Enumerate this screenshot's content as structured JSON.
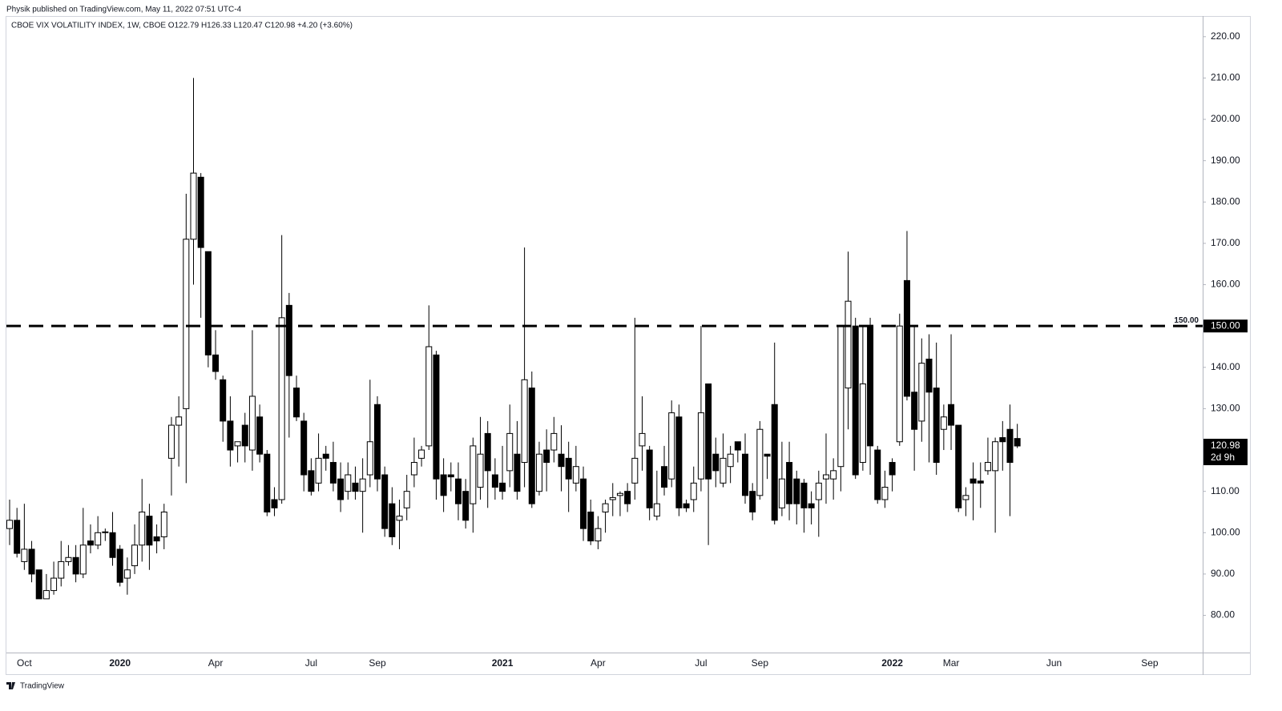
{
  "header": "Physik published on TradingView.com, May 11, 2022 07:51 UTC-4",
  "footer": "TradingView",
  "chart_data": {
    "type": "candlestick",
    "title": "CBOE VIX VOLATILITY INDEX, 1W, CBOE  O122.79  H126.33  L120.47  C120.98  +4.20 (+3.60%)",
    "categories": [
      null,
      null,
      "Oct",
      null,
      null,
      null,
      null,
      null,
      null,
      null,
      null,
      null,
      null,
      null,
      null,
      "2020",
      null,
      null,
      null,
      null,
      null,
      null,
      null,
      null,
      null,
      null,
      null,
      null,
      "Apr",
      null,
      null,
      null,
      null,
      null,
      null,
      null,
      null,
      null,
      null,
      null,
      null,
      "Jul",
      null,
      null,
      null,
      null,
      null,
      null,
      null,
      null,
      "Sep",
      null,
      null,
      null,
      null,
      null,
      null,
      null,
      null,
      null,
      null,
      null,
      null,
      null,
      null,
      null,
      null,
      "2021",
      null,
      null,
      null,
      null,
      null,
      null,
      null,
      null,
      null,
      null,
      null,
      null,
      "Apr",
      null,
      null,
      null,
      null,
      null,
      null,
      null,
      null,
      null,
      null,
      null,
      null,
      null,
      "Jul",
      null,
      null,
      null,
      null,
      null,
      null,
      null,
      "Sep",
      null,
      null,
      null,
      null,
      null,
      null,
      null,
      null,
      null,
      null,
      null,
      null,
      null,
      null,
      null,
      null,
      null,
      "2022",
      null,
      null,
      null,
      null,
      null,
      null,
      null,
      "Mar",
      null,
      null,
      null,
      null,
      null,
      null,
      null,
      null,
      null,
      null,
      null,
      null,
      null,
      "Jun",
      null,
      null,
      null,
      null,
      null,
      null,
      null,
      null,
      null,
      null,
      null,
      null,
      "Sep",
      null
    ],
    "open": [
      101,
      103,
      93,
      96,
      91,
      84,
      86,
      89,
      93,
      94,
      90,
      98,
      97,
      100,
      100,
      96,
      89,
      92,
      97,
      104,
      99,
      99,
      118,
      126,
      130,
      171,
      186,
      168,
      143,
      137,
      127,
      121,
      126,
      120,
      128,
      119,
      108,
      108,
      155,
      135,
      127,
      115,
      112,
      119,
      117,
      113,
      110,
      112,
      110,
      114,
      131,
      114,
      107,
      103,
      106,
      114,
      118,
      121,
      143,
      114,
      114,
      113,
      110,
      107,
      111,
      124,
      114,
      112,
      115,
      119,
      117,
      135,
      110,
      120,
      120,
      119,
      118,
      112,
      113,
      105,
      98,
      105,
      108,
      109,
      110,
      112,
      121,
      120,
      104,
      116,
      113,
      128,
      107,
      108,
      113,
      136,
      119,
      112,
      116,
      122,
      119,
      110,
      109,
      119,
      131,
      106,
      117,
      113,
      112,
      107,
      108,
      113,
      113,
      116,
      135,
      150,
      117,
      150,
      120,
      108,
      117,
      122,
      161,
      134,
      127,
      142,
      135,
      125,
      131,
      126,
      108,
      113,
      112.5,
      115,
      115,
      123,
      125,
      122.79,
      null,
      null,
      null,
      null,
      null,
      null,
      null,
      null,
      null,
      null,
      null,
      null,
      null,
      null,
      null,
      null,
      null,
      null,
      null
    ],
    "high": [
      108,
      106,
      107,
      98,
      91,
      90,
      93,
      98,
      97,
      97,
      106,
      102,
      104,
      101,
      105,
      97,
      94,
      102,
      113,
      107,
      102,
      107,
      128,
      133,
      182,
      210,
      187,
      168,
      149,
      138,
      133,
      122,
      129,
      149,
      131,
      120,
      111,
      172,
      158,
      138,
      129,
      118,
      124,
      121,
      122,
      117,
      117,
      116,
      118,
      137,
      133,
      116,
      111,
      108,
      114,
      123,
      121,
      155,
      144,
      118,
      117,
      117,
      113,
      123,
      128,
      127,
      118,
      121,
      131,
      127,
      169,
      139,
      122,
      125,
      128,
      126,
      122,
      121,
      116,
      108,
      104,
      108,
      112,
      110,
      112,
      152,
      133,
      121,
      115,
      121,
      132,
      131,
      108,
      116,
      150,
      136,
      123,
      124,
      121,
      122,
      124,
      112,
      127,
      119,
      146,
      122,
      122,
      115,
      113,
      110,
      115,
      124,
      118,
      150,
      168,
      152,
      150,
      152,
      121,
      115,
      118,
      153,
      173,
      150,
      147,
      148,
      146,
      131,
      148,
      126,
      111,
      117,
      117,
      123,
      123,
      127,
      131,
      126.33,
      null,
      null,
      null,
      null,
      null,
      null,
      null,
      null,
      null,
      null,
      null,
      null,
      null,
      null,
      null,
      null,
      null,
      null,
      null
    ],
    "low": [
      97,
      94,
      91,
      88,
      84,
      84,
      85,
      87,
      92,
      88,
      89,
      95,
      96,
      98,
      92,
      87,
      85,
      90,
      93,
      91,
      95,
      96,
      109,
      116,
      112,
      160,
      152,
      140,
      137,
      122,
      116,
      117,
      117,
      115,
      117,
      104,
      104,
      107,
      123,
      127,
      110,
      109,
      110,
      115,
      110,
      105,
      108,
      108,
      100,
      111,
      110,
      99,
      97,
      96,
      103,
      111,
      116,
      120,
      108,
      105,
      110,
      103,
      101,
      100,
      108,
      106,
      108,
      108,
      111,
      108,
      111,
      106,
      109,
      110,
      117,
      110,
      105,
      110,
      98,
      97,
      96,
      100,
      104,
      104,
      105,
      108,
      115,
      103,
      103,
      109,
      111,
      104,
      105,
      105,
      110,
      97,
      111,
      111,
      112,
      117,
      107,
      103,
      108,
      113,
      102,
      104,
      103,
      102,
      100,
      102,
      99,
      107,
      108,
      110,
      125,
      113,
      115,
      114,
      107,
      106,
      110,
      121,
      132,
      115,
      122,
      117,
      114,
      120,
      120,
      105,
      104,
      103,
      106,
      114,
      100,
      115,
      104,
      120.47,
      null,
      null,
      null,
      null,
      null,
      null,
      null,
      null,
      null,
      null,
      null,
      null,
      null,
      null,
      null,
      null,
      null,
      null,
      null
    ],
    "close": [
      103,
      95,
      96,
      90,
      84,
      86,
      89,
      93,
      94,
      90,
      97,
      97,
      100,
      100.2,
      94,
      88,
      91,
      97,
      105,
      97,
      98,
      105,
      126,
      128,
      171,
      187,
      169,
      143,
      139,
      127,
      120,
      122,
      121,
      133,
      119,
      105,
      106,
      152,
      138,
      128,
      114,
      110,
      118,
      118,
      112,
      108,
      114,
      110,
      113,
      122,
      113,
      101,
      99,
      104,
      110,
      117,
      120,
      145,
      113,
      109,
      113.5,
      107,
      103,
      121,
      119,
      115,
      111,
      110,
      124,
      110,
      137,
      107,
      119,
      117,
      124,
      116,
      113,
      116,
      101,
      98,
      101,
      107,
      108.5,
      109.5,
      107,
      118,
      124,
      106,
      107,
      111,
      129,
      106,
      106,
      112,
      129,
      113,
      115,
      118,
      119,
      120,
      109,
      105,
      125,
      118.5,
      103,
      113,
      107,
      107,
      106,
      106,
      112,
      114,
      115,
      150,
      156,
      114,
      136,
      121,
      108,
      111,
      114,
      150,
      133,
      125,
      141,
      134,
      117,
      128,
      126,
      106,
      109,
      112,
      112,
      117,
      122,
      122,
      117,
      120.98,
      null,
      null,
      null,
      null,
      null,
      null,
      null,
      null,
      null,
      null,
      null,
      null,
      null,
      null,
      null,
      null,
      null,
      null,
      null
    ],
    "up_color": "#ffffff",
    "down_color": "#000000",
    "ylim": [
      71,
      225
    ],
    "yticks": [
      {
        "value": 80,
        "label": "80.00"
      },
      {
        "value": 90,
        "label": "90.00"
      },
      {
        "value": 100,
        "label": "100.00"
      },
      {
        "value": 110,
        "label": "110.00"
      },
      {
        "value": 120,
        "label": "120.00"
      },
      {
        "value": 130,
        "label": "130.00"
      },
      {
        "value": 140,
        "label": "140.00"
      },
      {
        "value": 150,
        "label": "150.00"
      },
      {
        "value": 160,
        "label": "160.00"
      },
      {
        "value": 170,
        "label": "170.00"
      },
      {
        "value": 180,
        "label": "180.00"
      },
      {
        "value": 190,
        "label": "190.00"
      },
      {
        "value": 200,
        "label": "200.00"
      },
      {
        "value": 210,
        "label": "210.00"
      },
      {
        "value": 220,
        "label": "220.00"
      }
    ],
    "hline": {
      "value": 150,
      "label": "150.00"
    },
    "last_price": 120.98,
    "countdown": "2d 9h"
  }
}
